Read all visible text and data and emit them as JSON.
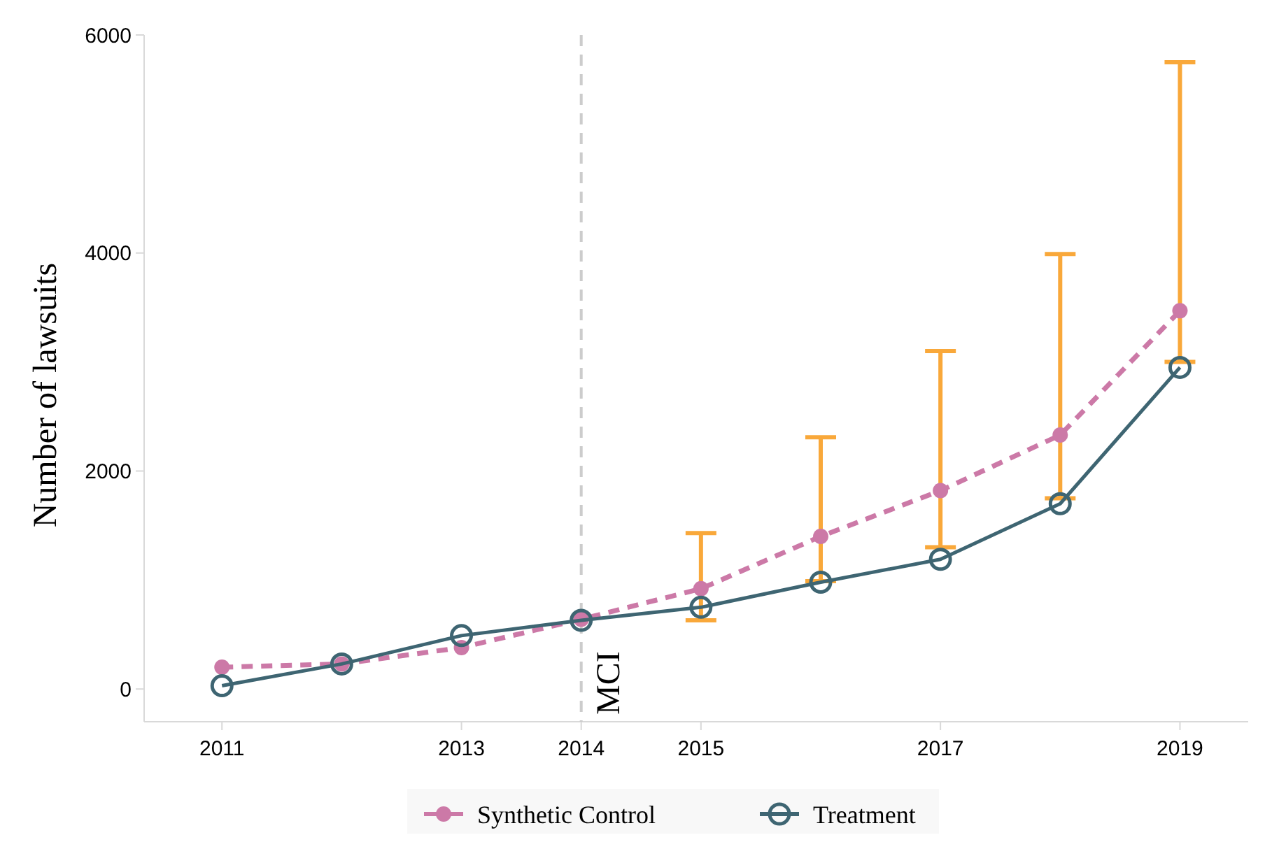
{
  "chart_data": {
    "type": "line",
    "ylabel": "Number of lawsuits",
    "x": [
      2011,
      2012,
      2013,
      2014,
      2015,
      2016,
      2017,
      2018,
      2019
    ],
    "xlim": [
      2010.35,
      2019.57
    ],
    "xticks": [
      2011,
      2013,
      2014,
      2015,
      2017,
      2019
    ],
    "ylim": [
      -300,
      6000
    ],
    "yticks": [
      0,
      2000,
      4000,
      6000
    ],
    "series": [
      {
        "name": "Synthetic Control",
        "color": "#cc79a7",
        "marker": "circle",
        "line_style": "dashed",
        "values": [
          200,
          230,
          380,
          640,
          920,
          1400,
          1820,
          2330,
          3470
        ],
        "errors": [
          null,
          null,
          null,
          null,
          [
            630,
            1430
          ],
          [
            990,
            2310
          ],
          [
            1300,
            3100
          ],
          [
            1750,
            3990
          ],
          [
            3000,
            5750
          ]
        ]
      },
      {
        "name": "Treatment",
        "color": "#3e6572",
        "marker": "circle_open",
        "line_style": "solid",
        "values": [
          30,
          230,
          490,
          630,
          750,
          980,
          1190,
          1700,
          2950
        ]
      }
    ],
    "ref_lines": [
      {
        "axis": "x",
        "value": 2014,
        "label": "MCI",
        "color": "#cccccc",
        "line_style": "dashed"
      }
    ],
    "grid": false,
    "legend": "bottom"
  }
}
